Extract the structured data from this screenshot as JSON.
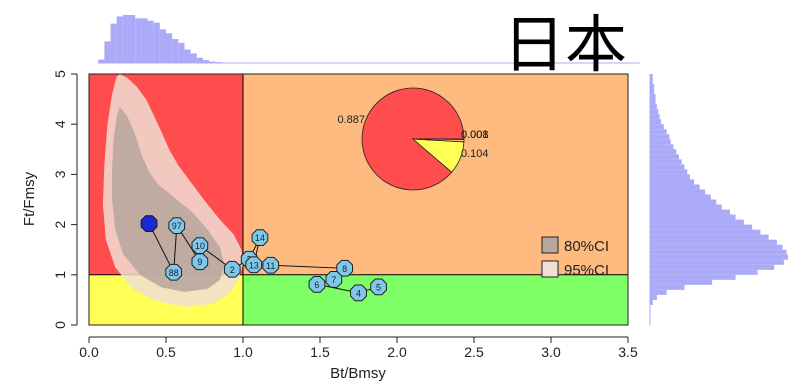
{
  "chart_data": {
    "type": "scatter",
    "title": "日本",
    "xlabel": "Bt/Bmsy",
    "ylabel": "Ft/Fmsy",
    "xlim": [
      0,
      3.5
    ],
    "ylim": [
      0,
      5
    ],
    "xticks": [
      "0.0",
      "0.5",
      "1.0",
      "1.5",
      "2.0",
      "2.5",
      "3.0",
      "3.5"
    ],
    "yticks": [
      "0",
      "1",
      "2",
      "3",
      "4",
      "5"
    ],
    "quadrant_colors": {
      "overfished_overfishing": "#ff4c4c",
      "overfishing_only": "#ffbb7f",
      "overfished_only": "#ffff55",
      "healthy": "#7fff66"
    },
    "confidence_legend": [
      {
        "label": "80%CI",
        "color": "#b9a79e"
      },
      {
        "label": "95%CI",
        "color": "#f1dfd4"
      }
    ],
    "trajectory": {
      "point_color": "#7ec8ea",
      "points": [
        {
          "label": "88",
          "x": 0.55,
          "y": 1.05
        },
        {
          "label": "97",
          "x": 0.57,
          "y": 1.98
        },
        {
          "label": "9",
          "x": 0.72,
          "y": 1.26
        },
        {
          "label": "10",
          "x": 0.72,
          "y": 1.58
        },
        {
          "label": "2",
          "x": 0.93,
          "y": 1.11
        },
        {
          "label": "3",
          "x": 1.04,
          "y": 1.31
        },
        {
          "label": "14",
          "x": 1.11,
          "y": 1.74
        },
        {
          "label": "13",
          "x": 1.07,
          "y": 1.2
        },
        {
          "label": "11",
          "x": 1.18,
          "y": 1.19
        },
        {
          "label": "8",
          "x": 1.66,
          "y": 1.13
        },
        {
          "label": "7",
          "x": 1.59,
          "y": 0.91
        },
        {
          "label": "6",
          "x": 1.48,
          "y": 0.81
        },
        {
          "label": "4",
          "x": 1.75,
          "y": 0.64
        },
        {
          "label": "5",
          "x": 1.88,
          "y": 0.76
        }
      ],
      "last_point": {
        "x": 0.39,
        "y": 2.02,
        "color": "#1a2bd6"
      }
    },
    "pie": {
      "slices": [
        {
          "label": "0.887",
          "value": 0.887,
          "color": "#ff4c4c"
        },
        {
          "label": "0.104",
          "value": 0.104,
          "color": "#ffff55"
        },
        {
          "label": "0.008",
          "value": 0.008,
          "color": "#ffbb7f"
        },
        {
          "label": "0.001",
          "value": 0.001,
          "color": "#7fff66"
        }
      ]
    },
    "marginals": {
      "color": "#aaaaf8",
      "x_hist": {
        "bin_start": 0.06,
        "bin_width": 0.04,
        "counts": [
          0.07,
          0.45,
          0.82,
          0.97,
          1.0,
          1.0,
          0.93,
          0.93,
          0.88,
          0.84,
          0.7,
          0.62,
          0.5,
          0.42,
          0.28,
          0.2,
          0.11,
          0.06,
          0.03,
          0.02
        ]
      },
      "y_hist": {
        "bin_start": 0.4,
        "bin_width": 0.1,
        "counts": [
          0.02,
          0.05,
          0.12,
          0.25,
          0.45,
          0.62,
          0.78,
          0.9,
          0.97,
          1.0,
          0.99,
          0.96,
          0.92,
          0.86,
          0.8,
          0.74,
          0.68,
          0.62,
          0.58,
          0.52,
          0.48,
          0.44,
          0.4,
          0.36,
          0.32,
          0.29,
          0.27,
          0.25,
          0.23,
          0.21,
          0.19,
          0.17,
          0.15,
          0.14,
          0.12,
          0.1,
          0.08,
          0.07,
          0.06,
          0.05,
          0.04,
          0.04,
          0.03,
          0.03,
          0.02,
          0.02
        ]
      }
    }
  }
}
